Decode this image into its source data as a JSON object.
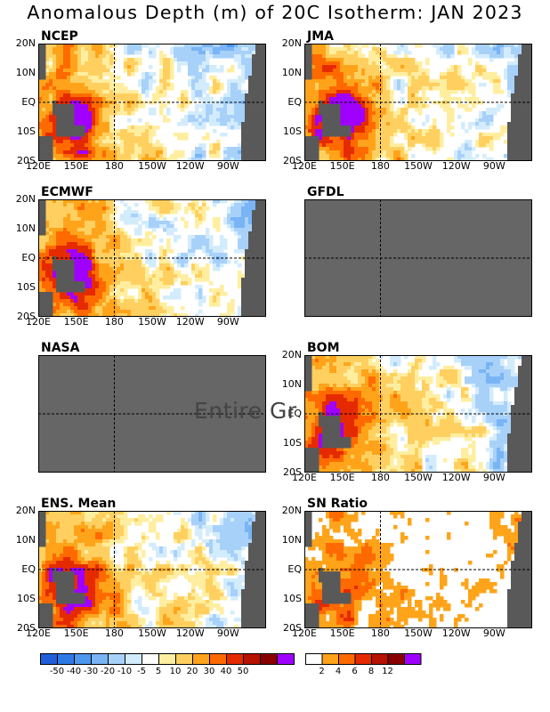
{
  "title": "Anomalous Depth (m) of 20C Isotherm: JAN 2023",
  "overlay_text": "Entire Gr",
  "colors": {
    "land": "#595959",
    "missing": "#666666",
    "anomaly_scale": [
      "#1f5fd9",
      "#2d7ae6",
      "#4d97ef",
      "#79b4f5",
      "#a8d1fa",
      "#d3ecfc",
      "#ffffff",
      "#ffeea0",
      "#ffd060",
      "#ffa41a",
      "#ff6a00",
      "#e62a00",
      "#b81200",
      "#8a0000",
      "#a000ff"
    ],
    "snr_scale": [
      "#ffffff",
      "#ffa41a",
      "#ff6a00",
      "#e62a00",
      "#b81200",
      "#8a0000",
      "#a000ff"
    ]
  },
  "chart_data": [
    {
      "type": "heatmap",
      "title": "NCEP",
      "status": "data",
      "ylabels": [
        "20N",
        "10N",
        "EQ",
        "10S",
        "20S"
      ],
      "xlabels": [
        "120E",
        "150E",
        "180",
        "150W",
        "120W",
        "90W"
      ]
    },
    {
      "type": "heatmap",
      "title": "JMA",
      "status": "data",
      "ylabels": [
        "20N",
        "10N",
        "EQ",
        "10S",
        "20S"
      ],
      "xlabels": [
        "120E",
        "150E",
        "180",
        "150W",
        "120W",
        "90W"
      ]
    },
    {
      "type": "heatmap",
      "title": "ECMWF",
      "status": "data",
      "ylabels": [
        "20N",
        "10N",
        "EQ",
        "10S",
        "20S"
      ],
      "xlabels": [
        "120E",
        "150E",
        "180",
        "150W",
        "120W",
        "90W"
      ]
    },
    {
      "type": "heatmap",
      "title": "GFDL",
      "status": "missing",
      "ylabels": [],
      "xlabels": []
    },
    {
      "type": "heatmap",
      "title": "NASA",
      "status": "missing",
      "ylabels": [],
      "xlabels": []
    },
    {
      "type": "heatmap",
      "title": "BOM",
      "status": "data",
      "ylabels": [
        "20N",
        "10N",
        "EQ",
        "10S",
        "20S"
      ],
      "xlabels": [
        "120E",
        "150E",
        "180",
        "150W",
        "120W",
        "90W"
      ]
    },
    {
      "type": "heatmap",
      "title": "ENS. Mean",
      "status": "data",
      "ylabels": [
        "20N",
        "10N",
        "EQ",
        "10S",
        "20S"
      ],
      "xlabels": [
        "120E",
        "150E",
        "180",
        "150W",
        "120W",
        "90W"
      ]
    },
    {
      "type": "heatmap",
      "title": "SN Ratio",
      "status": "snr",
      "ylabels": [
        "20N",
        "10N",
        "EQ",
        "10S",
        "20S"
      ],
      "xlabels": [
        "120E",
        "150E",
        "180",
        "150W",
        "120W",
        "90W"
      ]
    }
  ],
  "colorbars": {
    "anomaly": {
      "labels": [
        "-50",
        "-40",
        "-30",
        "-20",
        "-10",
        "-5",
        "5",
        "10",
        "20",
        "30",
        "40",
        "50"
      ]
    },
    "snr": {
      "labels": [
        "2",
        "4",
        "6",
        "8",
        "12"
      ]
    }
  }
}
